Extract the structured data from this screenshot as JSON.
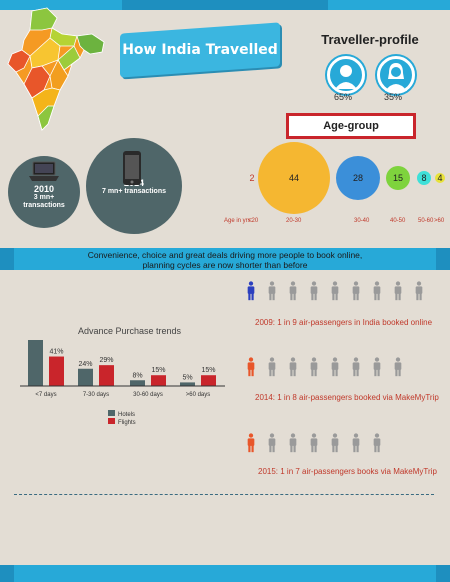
{
  "header": {
    "title": "How India Travelled"
  },
  "traveller": {
    "title": "Traveller-profile",
    "male_pct": "65%",
    "female_pct": "35%"
  },
  "age": {
    "title": "Age-group",
    "prefix": "Age in yrs:",
    "ticks": [
      "<20",
      "20-30",
      "30-40",
      "40-50",
      "50-60",
      ">60"
    ],
    "values": [
      "2",
      "44",
      "28",
      "15",
      "8",
      "4"
    ],
    "colors": [
      "#e74c3c",
      "#f5b731",
      "#3b8fd9",
      "#7ed33d",
      "#3fe0d8",
      "#e8e23a"
    ]
  },
  "transactions": [
    {
      "year": "2010",
      "text": "3 mn+\ntransactions"
    },
    {
      "year": "2014",
      "text": "7 mn+ transactions"
    }
  ],
  "divider": {
    "line1": "Convenience, choice and great deals driving more people to book online,",
    "line2": "planning cycles are now shorter than before"
  },
  "advance": {
    "title": "Advance Purchase trends",
    "categories": [
      "<7 days",
      "7-30 days",
      "30-60 days",
      ">60 days"
    ],
    "hotels": [
      64,
      24,
      8,
      5
    ],
    "flights": [
      41,
      29,
      15,
      15
    ],
    "hotels_labels": [
      "64%",
      "24%",
      "8%",
      "5%"
    ],
    "flights_labels": [
      "41%",
      "29%",
      "15%",
      "15%"
    ],
    "legend_hotels": "Hotels",
    "legend_flights": "Flights",
    "hotels_color": "#4f6669",
    "flights_color": "#c9252b"
  },
  "passengers": [
    {
      "text": "2009: 1 in 9 air-passengers in India booked online",
      "highlight": "#2b3fbf",
      "count": 9
    },
    {
      "text": "2014: 1 in 8 air-passengers booked via MakeMyTrip",
      "highlight": "#e8562a",
      "count": 8
    },
    {
      "text": "2015: 1 in 7 air-passengers books via MakeMyTrip",
      "highlight": "#e8562a",
      "count": 7
    }
  ]
}
